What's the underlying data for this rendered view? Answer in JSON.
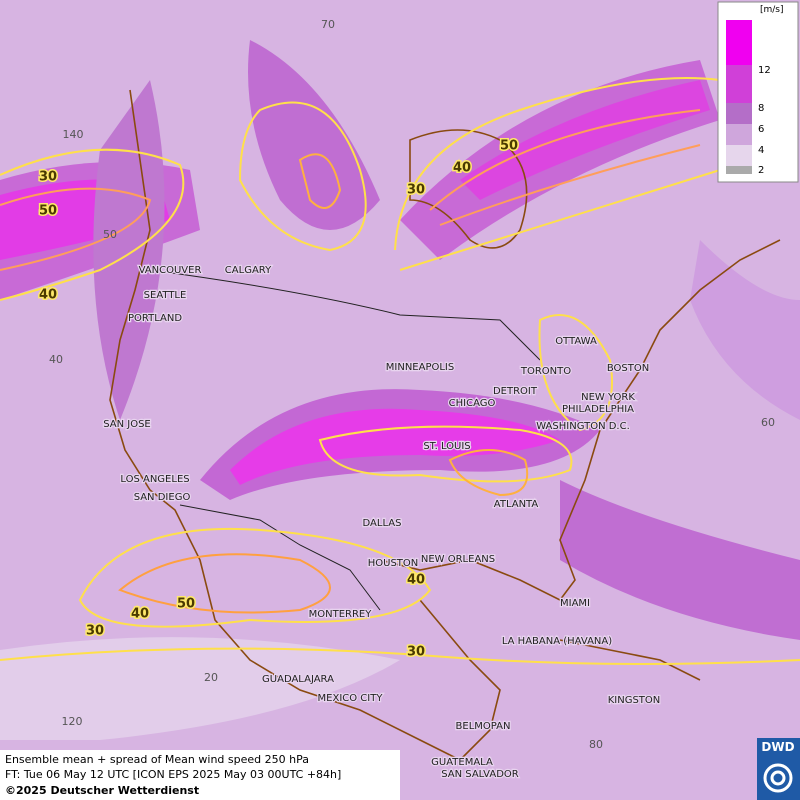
{
  "legend": {
    "unit": "[m/s]",
    "labels": [
      "12",
      "8",
      "6",
      "4",
      "2"
    ]
  },
  "cities": [
    "VANCOUVER",
    "CALGARY",
    "SEATTLE",
    "PORTLAND",
    "MINNEAPOLIS",
    "DETROIT",
    "TORONTO",
    "OTTAWA",
    "BOSTON",
    "NEW YORK",
    "PHILADELPHIA",
    "CHICAGO",
    "WASHINGTON D.C.",
    "ST. LOUIS",
    "SAN JOSE",
    "LOS ANGELES",
    "SAN DIEGO",
    "DALLAS",
    "ATLANTA",
    "HOUSTON",
    "NEW ORLEANS",
    "MIAMI",
    "MONTERREY",
    "LA HABANA (HAVANA)",
    "GUADALAJARA",
    "MEXICO CITY",
    "KINGSTON",
    "BELMOPAN",
    "GUATEMALA",
    "SAN SALVADOR"
  ],
  "contour_labels": [
    "30",
    "50",
    "40",
    "50",
    "40",
    "30",
    "40",
    "50",
    "40",
    "30",
    "30"
  ],
  "grid_labels": [
    "70",
    "140",
    "50",
    "40",
    "60",
    "20",
    "120",
    "80"
  ],
  "caption": {
    "line1": "Ensemble mean + spread of Mean wind speed 250 hPa",
    "line2": "FT: Tue 06 May 12 UTC [ICON EPS 2025 May 03 00UTC +84h]",
    "line3": "©2025 Deutscher Wetterdienst"
  },
  "logo": "DWD"
}
